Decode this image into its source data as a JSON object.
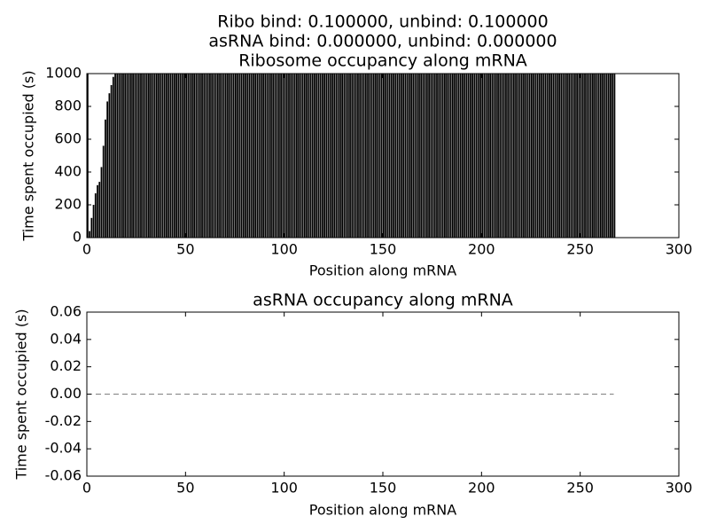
{
  "chart_data": [
    {
      "type": "bar",
      "title": [
        "Ribo bind: 0.100000, unbind: 0.100000",
        "asRNA bind: 0.000000, unbind: 0.000000",
        "Ribosome occupancy along mRNA"
      ],
      "x_label": "Position along mRNA",
      "y_label": "Time spent occupied (s)",
      "color": "#000000",
      "x": [
        0,
        1,
        2,
        3,
        4,
        5,
        6,
        7,
        8,
        9,
        10,
        11,
        12,
        13,
        14,
        15,
        16,
        17,
        18,
        19,
        20,
        21,
        22,
        23,
        24,
        25,
        26,
        27,
        28,
        29,
        30,
        31,
        32,
        33,
        34,
        35,
        36,
        37,
        38,
        39,
        40,
        41,
        42,
        43,
        44,
        45,
        46,
        47,
        48,
        49,
        50,
        51,
        52,
        53,
        54,
        55,
        56,
        57,
        58,
        59,
        60,
        61,
        62,
        63,
        64,
        65,
        66,
        67,
        68,
        69,
        70,
        71,
        72,
        73,
        74,
        75,
        76,
        77,
        78,
        79,
        80,
        81,
        82,
        83,
        84,
        85,
        86,
        87,
        88,
        89,
        90,
        91,
        92,
        93,
        94,
        95,
        96,
        97,
        98,
        99,
        100,
        101,
        102,
        103,
        104,
        105,
        106,
        107,
        108,
        109,
        110,
        111,
        112,
        113,
        114,
        115,
        116,
        117,
        118,
        119,
        120,
        121,
        122,
        123,
        124,
        125,
        126,
        127,
        128,
        129,
        130,
        131,
        132,
        133,
        134,
        135,
        136,
        137,
        138,
        139,
        140,
        141,
        142,
        143,
        144,
        145,
        146,
        147,
        148,
        149,
        150,
        151,
        152,
        153,
        154,
        155,
        156,
        157,
        158,
        159,
        160,
        161,
        162,
        163,
        164,
        165,
        166,
        167,
        168,
        169,
        170,
        171,
        172,
        173,
        174,
        175,
        176,
        177,
        178,
        179,
        180,
        181,
        182,
        183,
        184,
        185,
        186,
        187,
        188,
        189,
        190,
        191,
        192,
        193,
        194,
        195,
        196,
        197,
        198,
        199,
        200,
        201,
        202,
        203,
        204,
        205,
        206,
        207,
        208,
        209,
        210,
        211,
        212,
        213,
        214,
        215,
        216,
        217,
        218,
        219,
        220,
        221,
        222,
        223,
        224,
        225,
        226,
        227,
        228,
        229,
        230,
        231,
        232,
        233,
        234,
        235,
        236,
        237,
        238,
        239,
        240,
        241,
        242,
        243,
        244,
        245,
        246,
        247,
        248,
        249,
        250,
        251,
        252,
        253,
        254,
        255,
        256,
        257,
        258,
        259,
        260,
        261,
        262,
        263,
        264,
        265,
        266,
        267
      ],
      "values": [
        1000,
        40,
        120,
        200,
        270,
        320,
        340,
        430,
        560,
        720,
        830,
        880,
        930,
        980,
        1000,
        1000,
        1000,
        1000,
        1000,
        1000,
        1000,
        1000,
        1000,
        1000,
        1000,
        1000,
        1000,
        1000,
        1000,
        1000,
        1000,
        1000,
        1000,
        1000,
        1000,
        1000,
        1000,
        1000,
        1000,
        1000,
        1000,
        1000,
        1000,
        1000,
        1000,
        1000,
        1000,
        1000,
        1000,
        1000,
        1000,
        1000,
        1000,
        1000,
        1000,
        1000,
        1000,
        1000,
        1000,
        1000,
        1000,
        1000,
        1000,
        1000,
        1000,
        1000,
        1000,
        1000,
        1000,
        1000,
        1000,
        1000,
        1000,
        1000,
        1000,
        1000,
        1000,
        1000,
        1000,
        1000,
        1000,
        1000,
        1000,
        1000,
        1000,
        1000,
        1000,
        1000,
        1000,
        1000,
        1000,
        1000,
        1000,
        1000,
        1000,
        1000,
        1000,
        1000,
        1000,
        1000,
        1000,
        1000,
        1000,
        1000,
        1000,
        1000,
        1000,
        1000,
        1000,
        1000,
        1000,
        1000,
        1000,
        1000,
        1000,
        1000,
        1000,
        1000,
        1000,
        1000,
        1000,
        1000,
        1000,
        1000,
        1000,
        1000,
        1000,
        1000,
        1000,
        1000,
        1000,
        1000,
        1000,
        1000,
        1000,
        1000,
        1000,
        1000,
        1000,
        1000,
        1000,
        1000,
        1000,
        1000,
        1000,
        1000,
        1000,
        1000,
        1000,
        1000,
        1000,
        1000,
        1000,
        1000,
        1000,
        1000,
        1000,
        1000,
        1000,
        1000,
        1000,
        1000,
        1000,
        1000,
        1000,
        1000,
        1000,
        1000,
        1000,
        1000,
        1000,
        1000,
        1000,
        1000,
        1000,
        1000,
        1000,
        1000,
        1000,
        1000,
        1000,
        1000,
        1000,
        1000,
        1000,
        1000,
        1000,
        1000,
        1000,
        1000,
        1000,
        1000,
        1000,
        1000,
        1000,
        1000,
        1000,
        1000,
        1000,
        1000,
        1000,
        1000,
        1000,
        1000,
        1000,
        1000,
        1000,
        1000,
        1000,
        1000,
        1000,
        1000,
        1000,
        1000,
        1000,
        1000,
        1000,
        1000,
        1000,
        1000,
        1000,
        1000,
        1000,
        1000,
        1000,
        1000,
        1000,
        1000,
        1000,
        1000,
        1000,
        1000,
        1000,
        1000,
        1000,
        1000,
        1000,
        1000,
        1000,
        1000,
        1000,
        1000,
        1000,
        1000,
        1000,
        1000,
        1000,
        1000,
        1000,
        1000,
        1000,
        1000,
        1000,
        1000,
        1000,
        1000,
        1000,
        1000,
        1000,
        1000,
        1000,
        1000,
        1000,
        1000,
        1000,
        1000,
        1000,
        1000
      ],
      "xlim": [
        0,
        300
      ],
      "xticks": [
        0,
        50,
        100,
        150,
        200,
        250,
        300
      ],
      "ylim": [
        0,
        1000
      ],
      "yticks": [
        0,
        200,
        400,
        600,
        800,
        1000
      ]
    },
    {
      "type": "line",
      "title": "asRNA occupancy along mRNA",
      "x_label": "Position along mRNA",
      "y_label": "Time spent occupied (s)",
      "x": [
        0,
        267
      ],
      "series": [
        {
          "color": "#808080",
          "linestyle": "dashed",
          "values": [
            0,
            0
          ]
        }
      ],
      "xlim": [
        0,
        300
      ],
      "xticks": [
        0,
        50,
        100,
        150,
        200,
        250,
        300
      ],
      "ylim": [
        -0.06,
        0.06
      ],
      "yticks": [
        -0.06,
        -0.04,
        -0.02,
        {
          "value": 0,
          "label": "0.00"
        },
        0.02,
        0.04,
        0.06
      ]
    }
  ]
}
